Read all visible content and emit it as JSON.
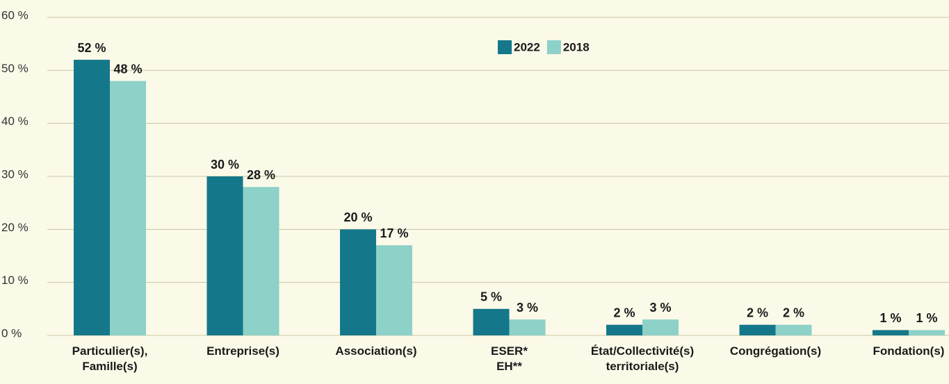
{
  "chart_data": {
    "type": "bar",
    "categories": [
      "Particulier(s),\nFamille(s)",
      "Entreprise(s)",
      "Association(s)",
      "ESER*\nEH**",
      "État/Collectivité(s)\nterritoriale(s)",
      "Congrégation(s)",
      "Fondation(s)"
    ],
    "series": [
      {
        "name": "2022",
        "color": "#14788a",
        "values": [
          52,
          30,
          20,
          5,
          2,
          2,
          1
        ],
        "value_labels": [
          "52 %",
          "30 %",
          "20 %",
          "5 %",
          "2 %",
          "2 %",
          "1 %"
        ]
      },
      {
        "name": "2018",
        "color": "#8dd1c8",
        "values": [
          48,
          28,
          17,
          3,
          3,
          2,
          1
        ],
        "value_labels": [
          "48 %",
          "28 %",
          "17 %",
          "3 %",
          "3 %",
          "2 %",
          "1 %"
        ]
      }
    ],
    "ylim": [
      0,
      60
    ],
    "yticks": [
      {
        "value": 0,
        "label": "0 %"
      },
      {
        "value": 10,
        "label": "10 %"
      },
      {
        "value": 20,
        "label": "20 %"
      },
      {
        "value": 30,
        "label": "30 %"
      },
      {
        "value": 40,
        "label": "40 %"
      },
      {
        "value": 50,
        "label": "50 %"
      },
      {
        "value": 60,
        "label": "60 %"
      }
    ],
    "grid": true
  }
}
